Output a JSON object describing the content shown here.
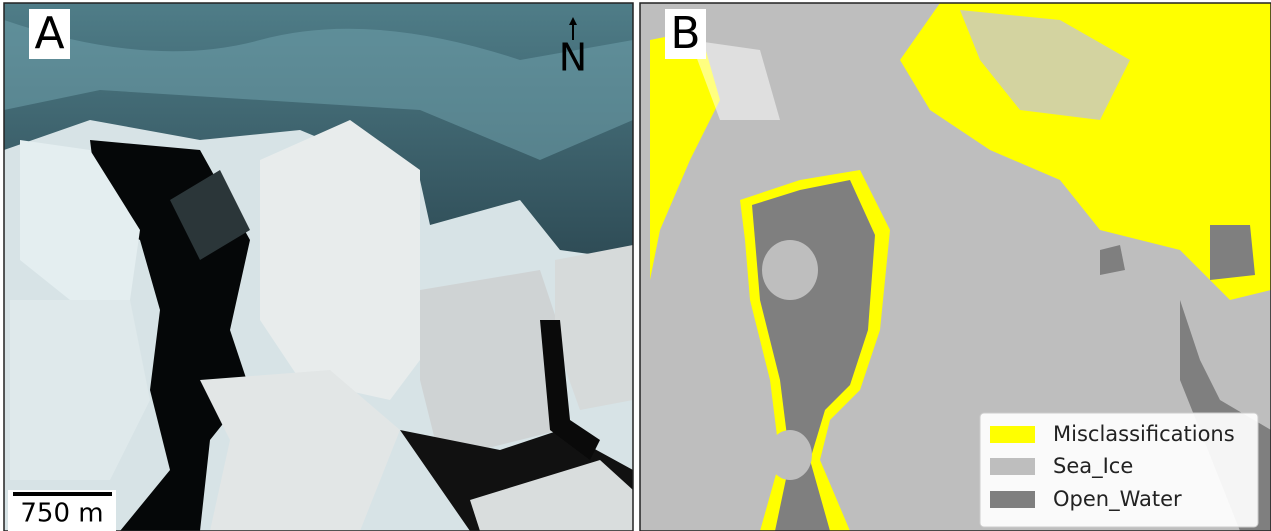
{
  "panels": [
    {
      "label": "A",
      "north": "N",
      "scale_bar": "750 m"
    },
    {
      "label": "B",
      "legend": [
        "Misclassifications",
        "Sea_Ice",
        "Open_Water"
      ]
    }
  ]
}
